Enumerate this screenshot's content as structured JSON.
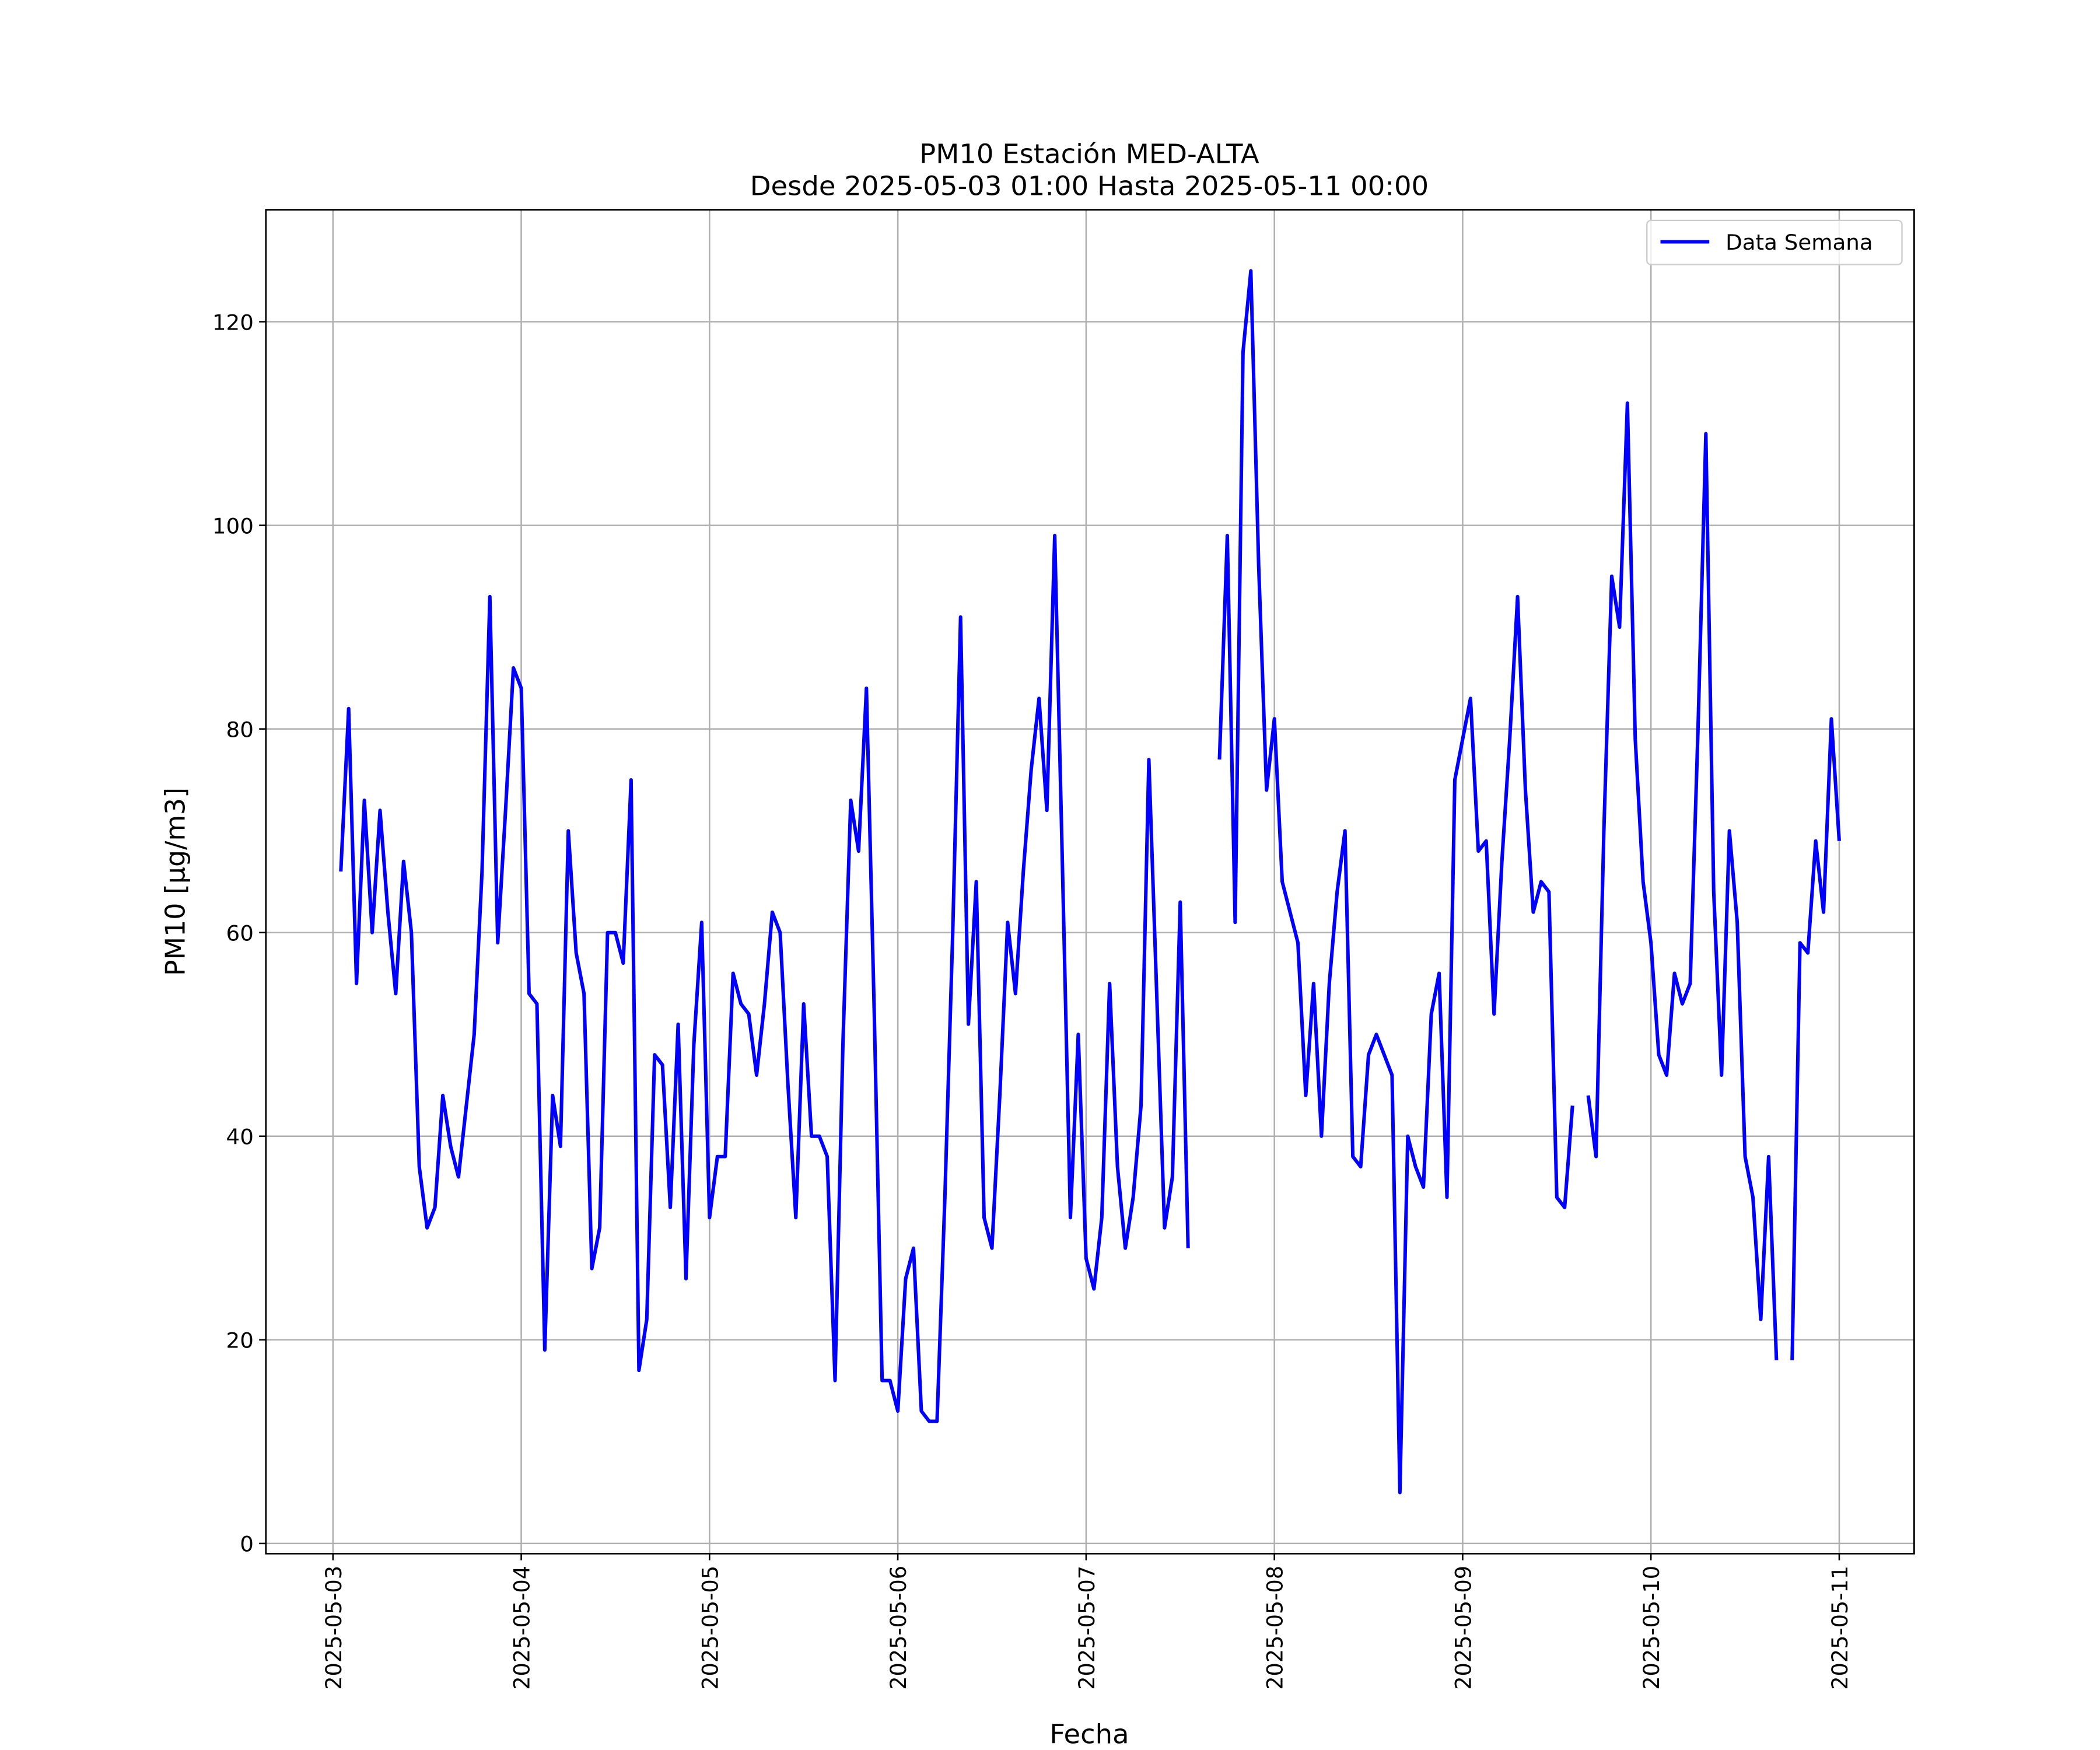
{
  "chart_data": {
    "type": "line",
    "title": "PM10 Estación MED-ALTA",
    "subtitle": "Desde 2025-05-03 01:00 Hasta 2025-05-11 00:00",
    "x_label": "Fecha",
    "y_label": "PM10 [μg/m3]",
    "x": [
      "2025-05-03 01:00",
      "2025-05-03 02:00",
      "2025-05-03 03:00",
      "2025-05-03 04:00",
      "2025-05-03 05:00",
      "2025-05-03 06:00",
      "2025-05-03 07:00",
      "2025-05-03 08:00",
      "2025-05-03 09:00",
      "2025-05-03 10:00",
      "2025-05-03 11:00",
      "2025-05-03 12:00",
      "2025-05-03 13:00",
      "2025-05-03 14:00",
      "2025-05-03 15:00",
      "2025-05-03 16:00",
      "2025-05-03 17:00",
      "2025-05-03 18:00",
      "2025-05-03 19:00",
      "2025-05-03 20:00",
      "2025-05-03 21:00",
      "2025-05-03 22:00",
      "2025-05-03 23:00",
      "2025-05-04 00:00",
      "2025-05-04 01:00",
      "2025-05-04 02:00",
      "2025-05-04 03:00",
      "2025-05-04 04:00",
      "2025-05-04 05:00",
      "2025-05-04 06:00",
      "2025-05-04 07:00",
      "2025-05-04 08:00",
      "2025-05-04 09:00",
      "2025-05-04 10:00",
      "2025-05-04 11:00",
      "2025-05-04 12:00",
      "2025-05-04 13:00",
      "2025-05-04 14:00",
      "2025-05-04 15:00",
      "2025-05-04 16:00",
      "2025-05-04 17:00",
      "2025-05-04 18:00",
      "2025-05-04 19:00",
      "2025-05-04 20:00",
      "2025-05-04 21:00",
      "2025-05-04 22:00",
      "2025-05-04 23:00",
      "2025-05-05 00:00",
      "2025-05-05 01:00",
      "2025-05-05 02:00",
      "2025-05-05 03:00",
      "2025-05-05 04:00",
      "2025-05-05 05:00",
      "2025-05-05 06:00",
      "2025-05-05 07:00",
      "2025-05-05 08:00",
      "2025-05-05 09:00",
      "2025-05-05 10:00",
      "2025-05-05 11:00",
      "2025-05-05 12:00",
      "2025-05-05 13:00",
      "2025-05-05 14:00",
      "2025-05-05 15:00",
      "2025-05-05 16:00",
      "2025-05-05 17:00",
      "2025-05-05 18:00",
      "2025-05-05 19:00",
      "2025-05-05 20:00",
      "2025-05-05 21:00",
      "2025-05-05 22:00",
      "2025-05-05 23:00",
      "2025-05-06 00:00",
      "2025-05-06 01:00",
      "2025-05-06 02:00",
      "2025-05-06 03:00",
      "2025-05-06 04:00",
      "2025-05-06 05:00",
      "2025-05-06 06:00",
      "2025-05-06 07:00",
      "2025-05-06 08:00",
      "2025-05-06 09:00",
      "2025-05-06 10:00",
      "2025-05-06 11:00",
      "2025-05-06 12:00",
      "2025-05-06 13:00",
      "2025-05-06 14:00",
      "2025-05-06 15:00",
      "2025-05-06 16:00",
      "2025-05-06 17:00",
      "2025-05-06 18:00",
      "2025-05-06 19:00",
      "2025-05-06 20:00",
      "2025-05-06 21:00",
      "2025-05-06 22:00",
      "2025-05-06 23:00",
      "2025-05-07 00:00",
      "2025-05-07 01:00",
      "2025-05-07 02:00",
      "2025-05-07 03:00",
      "2025-05-07 04:00",
      "2025-05-07 05:00",
      "2025-05-07 06:00",
      "2025-05-07 07:00",
      "2025-05-07 08:00",
      "2025-05-07 09:00",
      "2025-05-07 10:00",
      "2025-05-07 11:00",
      "2025-05-07 12:00",
      "2025-05-07 13:00",
      "2025-05-07 14:00",
      "2025-05-07 15:00",
      "2025-05-07 16:00",
      "2025-05-07 17:00",
      "2025-05-07 18:00",
      "2025-05-07 19:00",
      "2025-05-07 20:00",
      "2025-05-07 21:00",
      "2025-05-07 22:00",
      "2025-05-07 23:00",
      "2025-05-08 00:00",
      "2025-05-08 01:00",
      "2025-05-08 02:00",
      "2025-05-08 03:00",
      "2025-05-08 04:00",
      "2025-05-08 05:00",
      "2025-05-08 06:00",
      "2025-05-08 07:00",
      "2025-05-08 08:00",
      "2025-05-08 09:00",
      "2025-05-08 10:00",
      "2025-05-08 11:00",
      "2025-05-08 12:00",
      "2025-05-08 13:00",
      "2025-05-08 14:00",
      "2025-05-08 15:00",
      "2025-05-08 16:00",
      "2025-05-08 17:00",
      "2025-05-08 18:00",
      "2025-05-08 19:00",
      "2025-05-08 20:00",
      "2025-05-08 21:00",
      "2025-05-08 22:00",
      "2025-05-08 23:00",
      "2025-05-09 00:00",
      "2025-05-09 01:00",
      "2025-05-09 02:00",
      "2025-05-09 03:00",
      "2025-05-09 04:00",
      "2025-05-09 05:00",
      "2025-05-09 06:00",
      "2025-05-09 07:00",
      "2025-05-09 08:00",
      "2025-05-09 09:00",
      "2025-05-09 10:00",
      "2025-05-09 11:00",
      "2025-05-09 12:00",
      "2025-05-09 13:00",
      "2025-05-09 14:00",
      "2025-05-09 15:00",
      "2025-05-09 16:00",
      "2025-05-09 17:00",
      "2025-05-09 18:00",
      "2025-05-09 19:00",
      "2025-05-09 20:00",
      "2025-05-09 21:00",
      "2025-05-09 22:00",
      "2025-05-09 23:00",
      "2025-05-10 00:00",
      "2025-05-10 01:00",
      "2025-05-10 02:00",
      "2025-05-10 03:00",
      "2025-05-10 04:00",
      "2025-05-10 05:00",
      "2025-05-10 06:00",
      "2025-05-10 07:00",
      "2025-05-10 08:00",
      "2025-05-10 09:00",
      "2025-05-10 10:00",
      "2025-05-10 11:00",
      "2025-05-10 12:00",
      "2025-05-10 13:00",
      "2025-05-10 14:00",
      "2025-05-10 15:00",
      "2025-05-10 16:00",
      "2025-05-10 17:00",
      "2025-05-10 18:00",
      "2025-05-10 19:00",
      "2025-05-10 20:00",
      "2025-05-10 21:00",
      "2025-05-10 22:00",
      "2025-05-10 23:00",
      "2025-05-11 00:00"
    ],
    "series": [
      {
        "name": "Data Semana",
        "color": "#0000ff",
        "values": [
          66,
          82,
          55,
          73,
          60,
          72,
          62,
          54,
          67,
          60,
          37,
          31,
          33,
          44,
          39,
          36,
          43,
          50,
          66,
          93,
          59,
          72,
          86,
          84,
          54,
          53,
          19,
          44,
          39,
          70,
          58,
          54,
          27,
          31,
          60,
          60,
          57,
          75,
          17,
          22,
          48,
          47,
          33,
          51,
          26,
          49,
          61,
          32,
          38,
          38,
          56,
          53,
          52,
          46,
          53,
          62,
          60,
          45,
          32,
          53,
          40,
          40,
          38,
          16,
          49,
          73,
          68,
          84,
          52,
          16,
          16,
          13,
          26,
          29,
          13,
          12,
          12,
          34,
          60,
          91,
          51,
          65,
          32,
          29,
          44,
          61,
          54,
          66,
          76,
          83,
          72,
          99,
          66,
          32,
          50,
          28,
          25,
          32,
          55,
          37,
          29,
          34,
          43,
          77,
          54,
          31,
          36,
          63,
          29,
          null,
          null,
          null,
          77,
          99,
          61,
          117,
          125,
          96,
          74,
          81,
          65,
          62,
          59,
          44,
          55,
          40,
          55,
          64,
          70,
          38,
          37,
          48,
          50,
          48,
          46,
          5,
          40,
          37,
          35,
          52,
          56,
          34,
          75,
          79,
          83,
          68,
          69,
          52,
          67,
          79,
          93,
          74,
          62,
          65,
          64,
          34,
          33,
          43,
          null,
          44,
          38,
          70,
          95,
          90,
          112,
          79,
          65,
          59,
          48,
          46,
          56,
          53,
          55,
          80,
          109,
          64,
          46,
          70,
          61,
          38,
          34,
          22,
          38,
          18,
          null,
          18,
          59,
          58,
          69,
          62,
          81,
          69
        ]
      }
    ],
    "xlim": [
      "2025-05-02 15:27",
      "2025-05-11 09:33"
    ],
    "xticks": [
      "2025-05-03",
      "2025-05-04",
      "2025-05-05",
      "2025-05-06",
      "2025-05-07",
      "2025-05-08",
      "2025-05-09",
      "2025-05-10",
      "2025-05-11"
    ],
    "ylim": [
      -1,
      131
    ],
    "yticks": [
      0,
      20,
      40,
      60,
      80,
      100,
      120
    ],
    "grid": true,
    "legend": "upper right"
  }
}
